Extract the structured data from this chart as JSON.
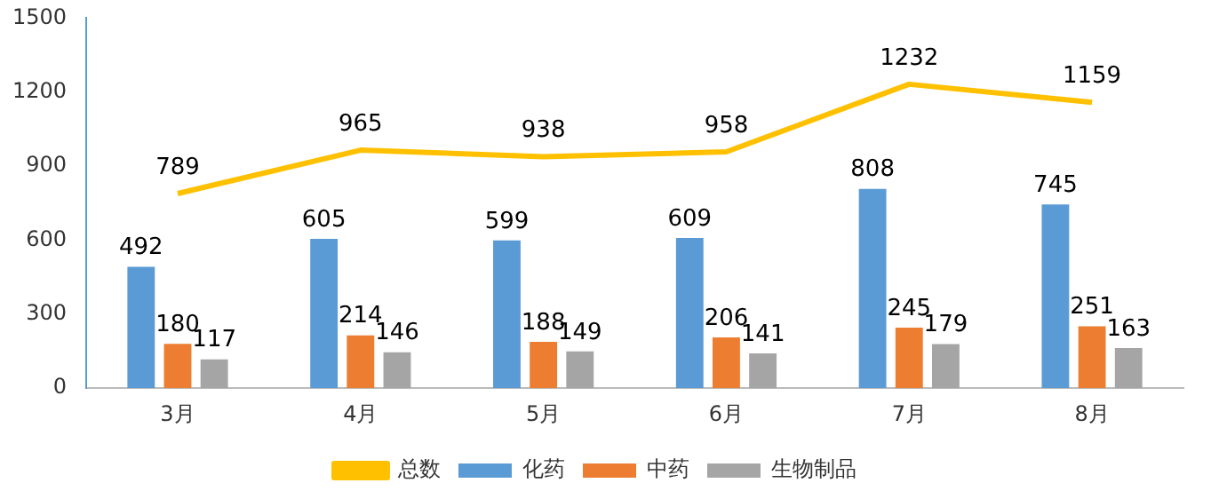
{
  "chart_data": {
    "type": "bar",
    "categories": [
      "3月",
      "4月",
      "5月",
      "6月",
      "7月",
      "8月"
    ],
    "series": [
      {
        "name": "化药",
        "color": "#5b9bd5",
        "values": [
          492,
          605,
          599,
          609,
          808,
          745
        ]
      },
      {
        "name": "中药",
        "color": "#ed7d31",
        "values": [
          180,
          214,
          188,
          206,
          245,
          251
        ]
      },
      {
        "name": "生物制品",
        "color": "#a5a5a5",
        "values": [
          117,
          146,
          149,
          141,
          179,
          163
        ]
      },
      {
        "name": "总数",
        "type": "line",
        "color": "#ffc000",
        "values": [
          789,
          965,
          938,
          958,
          1232,
          1159
        ]
      }
    ],
    "ylim": [
      0,
      1500
    ],
    "yticks": [
      0,
      300,
      600,
      900,
      1200,
      1500
    ],
    "grid": false,
    "legend": "bottom",
    "data_labels": true,
    "marker": "none"
  }
}
